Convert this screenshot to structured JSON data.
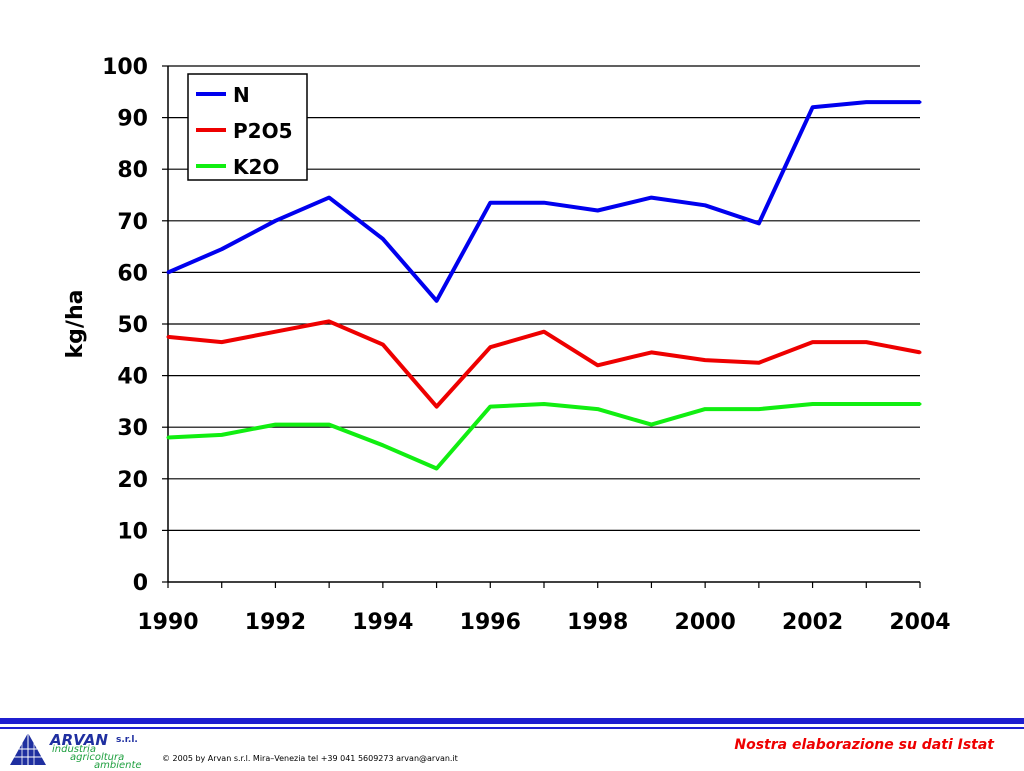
{
  "chart_data": {
    "type": "line",
    "title": "",
    "xlabel": "",
    "ylabel": "kg/ha",
    "x": [
      1990,
      1991,
      1992,
      1993,
      1994,
      1995,
      1996,
      1997,
      1998,
      1999,
      2000,
      2001,
      2002,
      2003,
      2004
    ],
    "xlim": [
      1990,
      2004
    ],
    "ylim": [
      0,
      100
    ],
    "x_ticks": [
      "1990",
      "1992",
      "1994",
      "1996",
      "1998",
      "2000",
      "2002",
      "2004"
    ],
    "y_ticks": [
      "0",
      "10",
      "20",
      "30",
      "40",
      "50",
      "60",
      "70",
      "80",
      "90",
      "100"
    ],
    "grid": "horizontal",
    "legend_position": "top-left",
    "series": [
      {
        "name": "N",
        "color": "#0000ee",
        "values": [
          60,
          64.5,
          70,
          74.5,
          66.5,
          54.5,
          73.5,
          73.5,
          72,
          74.5,
          73,
          69.5,
          92,
          93,
          93
        ]
      },
      {
        "name": "P2O5",
        "color": "#ee0000",
        "values": [
          47.5,
          46.5,
          48.5,
          50.5,
          46,
          34,
          45.5,
          48.5,
          42,
          44.5,
          43,
          42.5,
          46.5,
          46.5,
          44.5
        ]
      },
      {
        "name": "K2O",
        "color": "#11ee11",
        "values": [
          28,
          28.5,
          30.5,
          30.5,
          26.5,
          22,
          34,
          34.5,
          33.5,
          30.5,
          33.5,
          33.5,
          34.5,
          34.5,
          34.5
        ]
      }
    ]
  },
  "footer": {
    "logo_name": "ARVAN",
    "logo_suffix": "s.r.l.",
    "logo_line1": "industria",
    "logo_line2": "agricoltura",
    "logo_line3": "ambiente",
    "copyright": "© 2005 by Arvan s.r.l. Mira–Venezia tel +39 041 5609273 arvan@arvan.it",
    "source_note": "Nostra elaborazione su dati Istat",
    "accent_color": "#1f1fd0",
    "source_color": "#ee0000"
  }
}
